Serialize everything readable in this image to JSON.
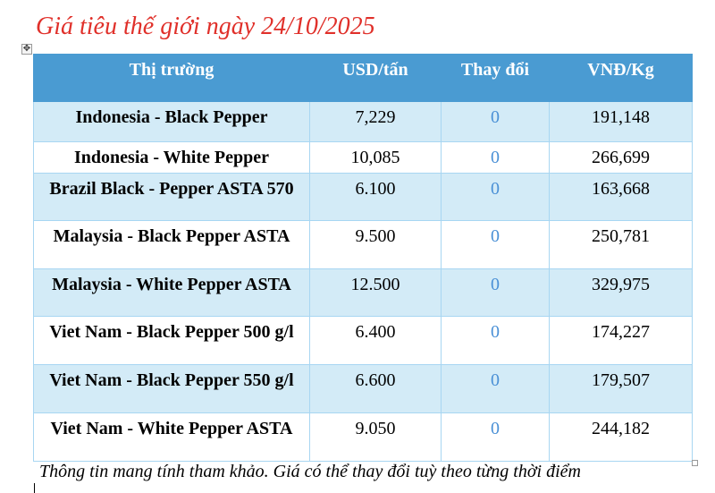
{
  "title": "Giá tiêu thế giới ngày 24/10/2025",
  "headers": [
    "Thị trường",
    "USD/tấn",
    "Thay đổi",
    "VNĐ/Kg"
  ],
  "rows": [
    {
      "market": "Indonesia - Black Pepper",
      "usd": "7,229",
      "change": "0",
      "vnd": "191,148"
    },
    {
      "market": "Indonesia - White Pepper",
      "usd": "10,085",
      "change": "0",
      "vnd": "266,699"
    },
    {
      "market": "Brazil Black - Pepper ASTA 570",
      "usd": "6.100",
      "change": "0",
      "vnd": "163,668"
    },
    {
      "market": "Malaysia - Black Pepper ASTA",
      "usd": "9.500",
      "change": "0",
      "vnd": "250,781"
    },
    {
      "market": "Malaysia - White Pepper ASTA",
      "usd": "12.500",
      "change": "0",
      "vnd": "329,975"
    },
    {
      "market": "Viet Nam - Black Pepper 500 g/l",
      "usd": "6.400",
      "change": "0",
      "vnd": "174,227"
    },
    {
      "market": "Viet Nam - Black Pepper 550 g/l",
      "usd": "6.600",
      "change": "0",
      "vnd": "179,507"
    },
    {
      "market": "Viet Nam - White Pepper ASTA",
      "usd": "9.050",
      "change": "0",
      "vnd": "244,182"
    }
  ],
  "note": "Thông tin mang tính tham khảo. Giá có thể thay đổi tuỳ theo từng thời điểm",
  "colors": {
    "title": "#e0302a",
    "header": "#4a9bd2",
    "alt_row": "#d3ebf7",
    "change": "#4a90d6"
  }
}
